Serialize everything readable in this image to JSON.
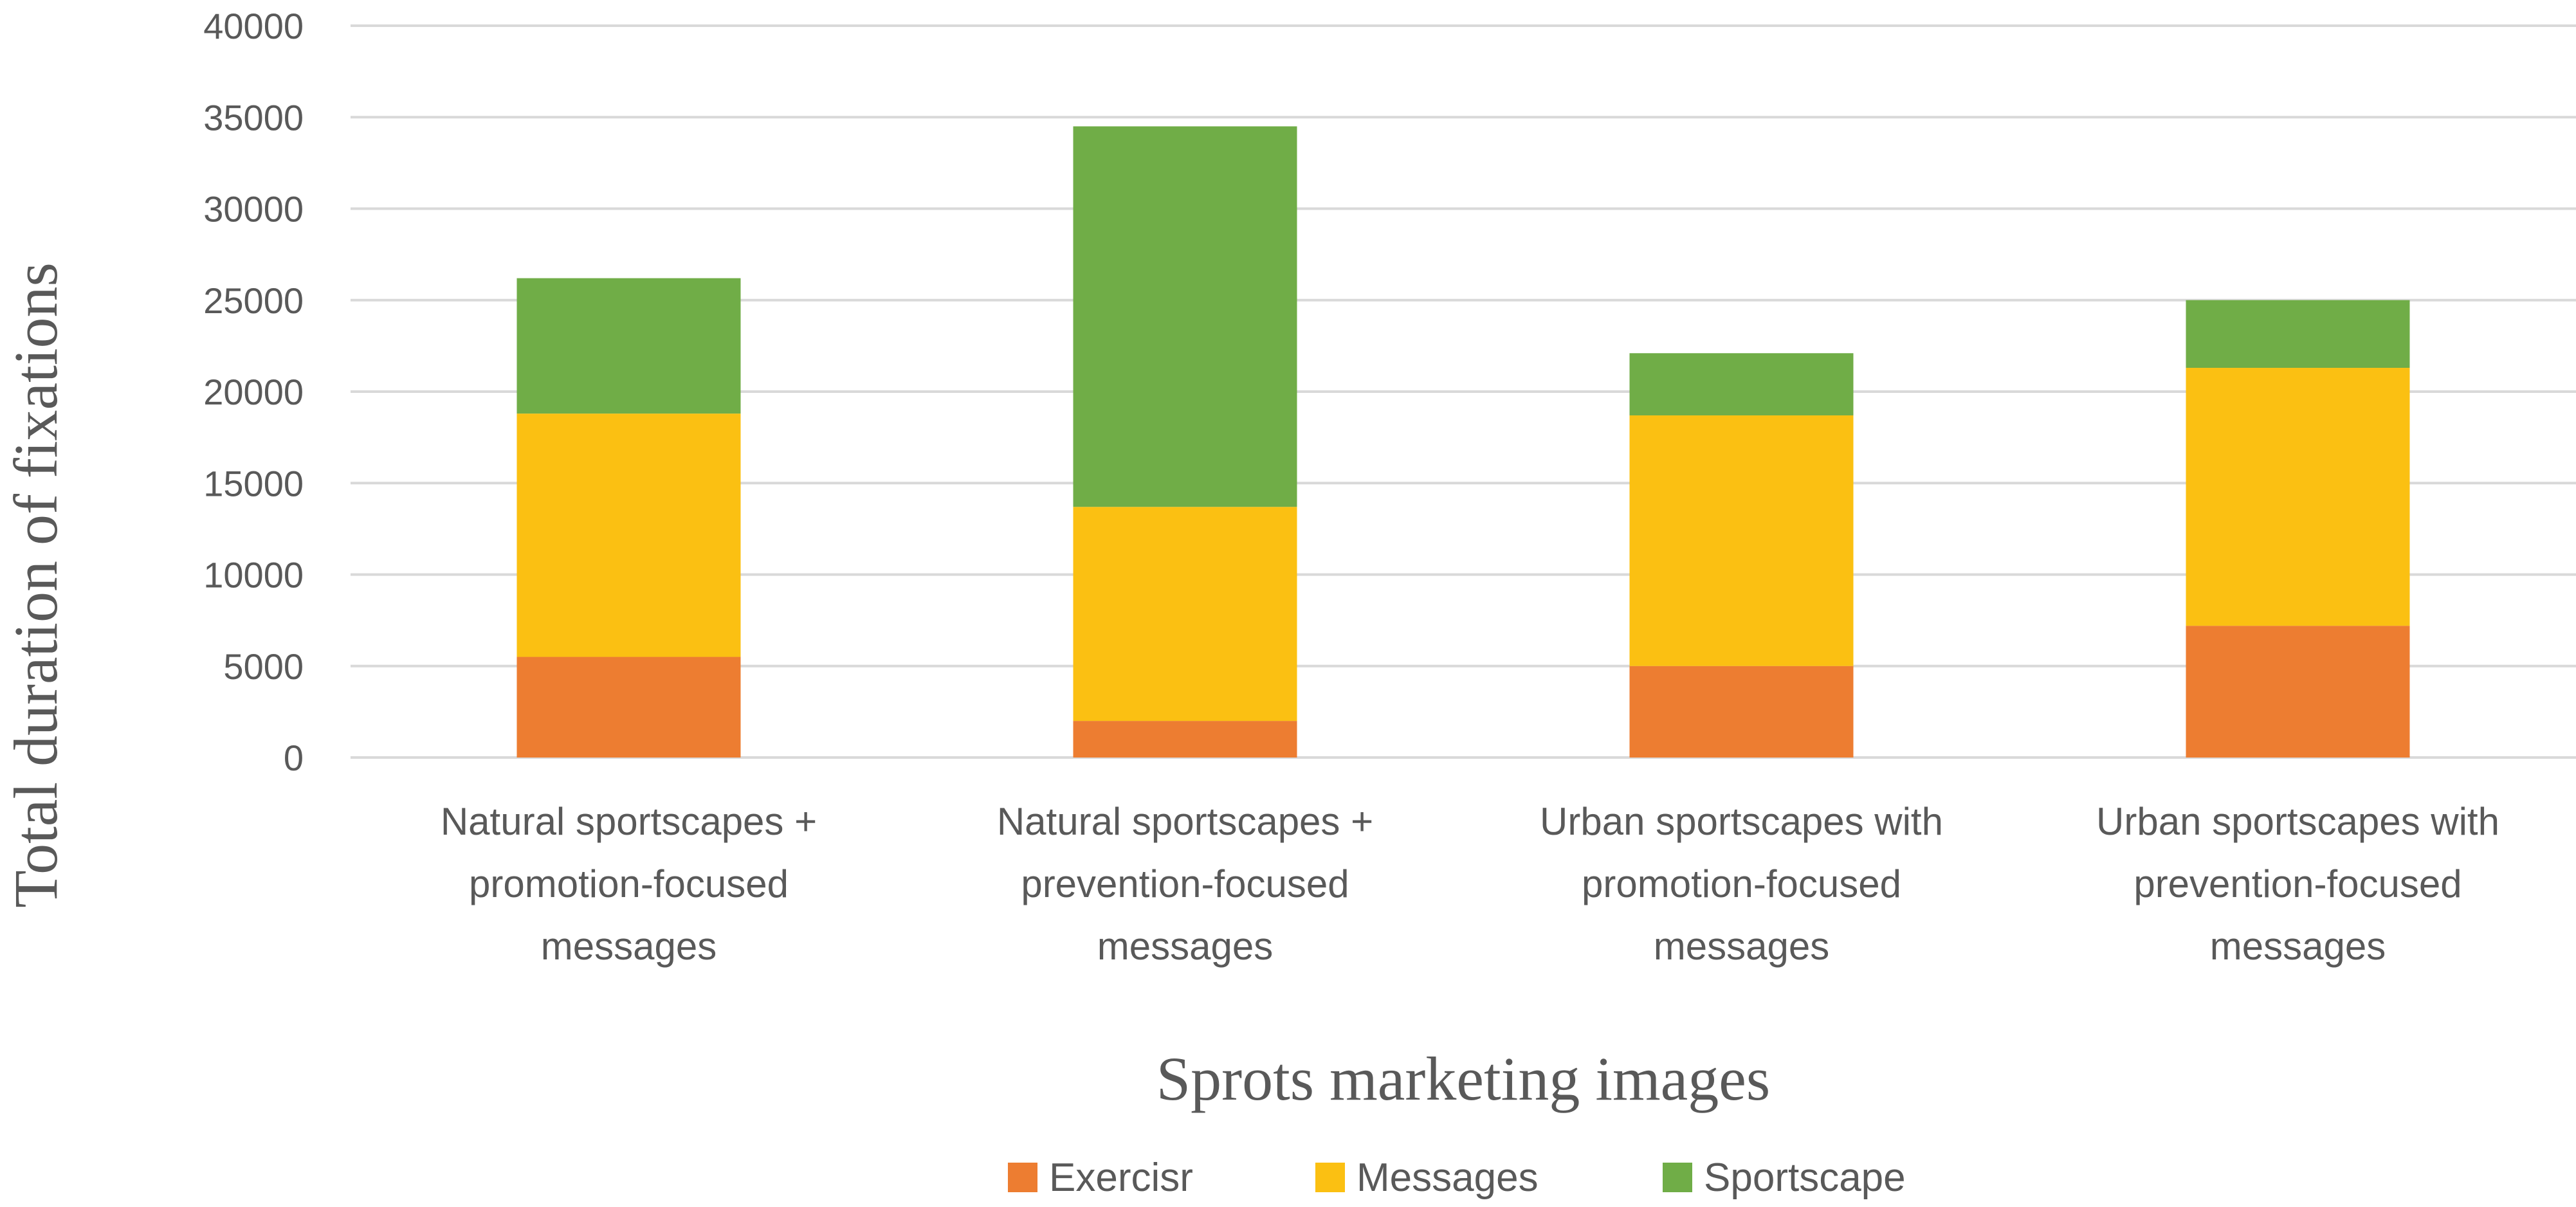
{
  "chart_data": {
    "type": "bar",
    "stacked": true,
    "categories": [
      [
        "Natural sportscapes +",
        "promotion-focused",
        "messages"
      ],
      [
        "Natural sportscapes +",
        "prevention-focused",
        "messages"
      ],
      [
        "Urban sportscapes with",
        "promotion-focused",
        "messages"
      ],
      [
        "Urban sportscapes with",
        "prevention-focused",
        "messages"
      ]
    ],
    "series": [
      {
        "name": "Exercisr",
        "color": "#ed7d31",
        "values": [
          5500,
          2000,
          5000,
          7200
        ]
      },
      {
        "name": "Messages",
        "color": "#fbc012",
        "values": [
          13300,
          11700,
          13700,
          14100
        ]
      },
      {
        "name": "Sportscape",
        "color": "#70ad47",
        "values": [
          7400,
          20800,
          3400,
          3700
        ]
      }
    ],
    "xlabel": "Sprots marketing images",
    "ylabel": "Total duration of fixations",
    "ylim": [
      0,
      40000
    ],
    "yticks": [
      0,
      5000,
      10000,
      15000,
      20000,
      25000,
      30000,
      35000,
      40000
    ],
    "grid": true,
    "legend": "bottom"
  }
}
